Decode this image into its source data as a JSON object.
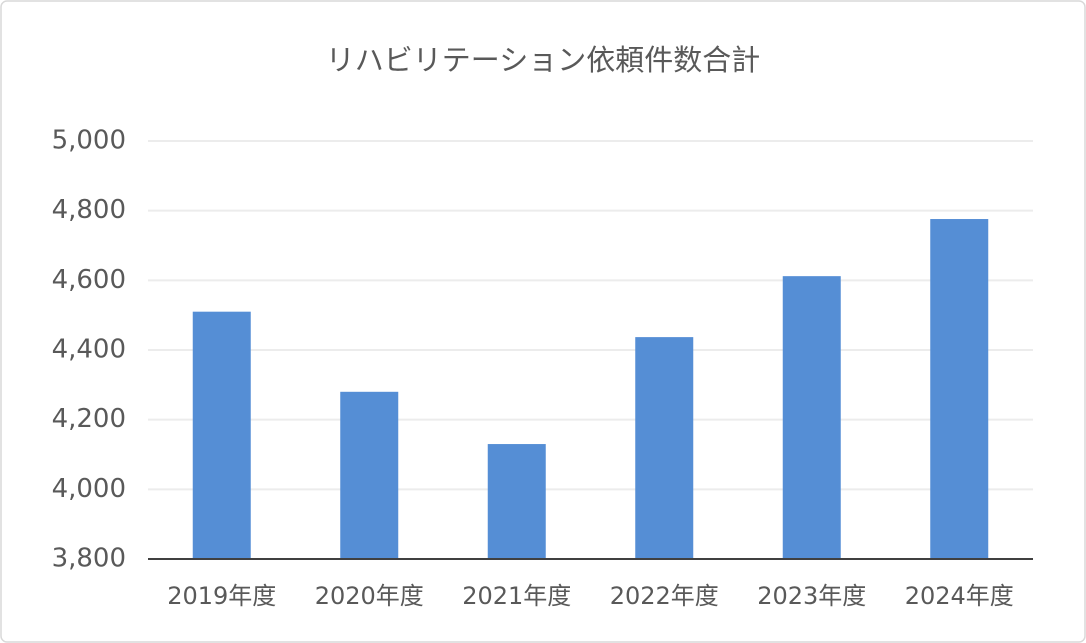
{
  "chart_data": {
    "type": "bar",
    "title": "リハビリテーション依頼件数合計",
    "categories": [
      "2019年度",
      "2020年度",
      "2021年度",
      "2022年度",
      "2023年度",
      "2024年度"
    ],
    "values": [
      4510,
      4280,
      4130,
      4437,
      4612,
      4776
    ],
    "color": "#558ed5",
    "ylim": [
      3800,
      5000
    ],
    "yticks": [
      {
        "value": 3800,
        "label": "3,800"
      },
      {
        "value": 4000,
        "label": "4,000"
      },
      {
        "value": 4200,
        "label": "4,200"
      },
      {
        "value": 4400,
        "label": "4,400"
      },
      {
        "value": 4600,
        "label": "4,600"
      },
      {
        "value": 4800,
        "label": "4,800"
      },
      {
        "value": 5000,
        "label": "5,000"
      }
    ],
    "grid": true
  }
}
